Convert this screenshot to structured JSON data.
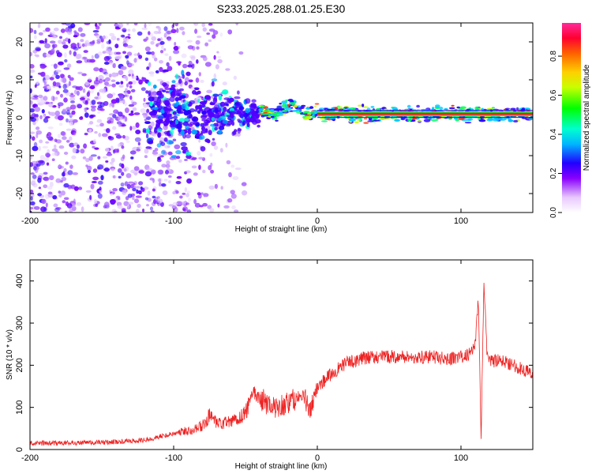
{
  "title": "S233.2025.288.01.25.E30",
  "chart_data": [
    {
      "type": "heatmap",
      "xlabel": "Height of straight line (km)",
      "ylabel": "Frequency (Hz)",
      "xlim": [
        -200,
        150
      ],
      "ylim": [
        -25,
        25
      ],
      "xticks": [
        -200,
        -100,
        0,
        100
      ],
      "yticks": [
        -20,
        -10,
        0,
        10,
        20
      ],
      "grid": false,
      "colorbar": {
        "label": "Normalized spectral amplitude",
        "range": [
          0,
          0.97
        ],
        "ticks": [
          0.0,
          0.2,
          0.4,
          0.6,
          0.8
        ]
      },
      "features": {
        "scattered_noise_x_range": [
          -200,
          -50
        ],
        "transition_cluster_x_range": [
          -120,
          -40
        ],
        "strong_band_x_range": [
          -40,
          150
        ],
        "strong_band_frequency": 1,
        "peak_amplitude": 0.97
      }
    },
    {
      "type": "line",
      "xlabel": "Height of straight line (km)",
      "ylabel": "SNR (10 * v/v)",
      "xlim": [
        -200,
        150
      ],
      "ylim": [
        0,
        450
      ],
      "xticks": [
        -200,
        -100,
        0,
        100
      ],
      "yticks": [
        0,
        100,
        200,
        300,
        400
      ],
      "grid": false,
      "series": [
        {
          "color": "#ee2222",
          "x": [
            -200,
            -180,
            -160,
            -140,
            -120,
            -110,
            -100,
            -90,
            -80,
            -75,
            -70,
            -60,
            -50,
            -45,
            -40,
            -35,
            -30,
            -20,
            -10,
            -5,
            0,
            10,
            20,
            30,
            40,
            50,
            60,
            70,
            80,
            90,
            100,
            105,
            110,
            112,
            114,
            116,
            118,
            120,
            130,
            140,
            150
          ],
          "y": [
            15,
            15,
            16,
            18,
            22,
            30,
            38,
            45,
            55,
            80,
            60,
            65,
            85,
            140,
            120,
            110,
            100,
            110,
            130,
            90,
            150,
            180,
            205,
            215,
            220,
            220,
            220,
            218,
            220,
            215,
            220,
            225,
            250,
            360,
            30,
            400,
            230,
            210,
            210,
            195,
            180
          ]
        }
      ]
    }
  ]
}
